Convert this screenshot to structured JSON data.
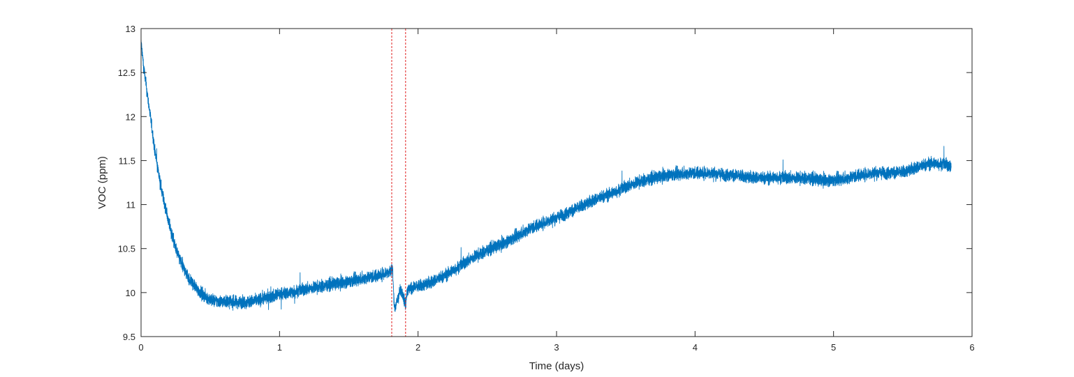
{
  "chart_data": {
    "type": "line",
    "title": "",
    "xlabel": "Time (days)",
    "ylabel": "VOC (ppm)",
    "xlim": [
      0,
      6
    ],
    "ylim": [
      9.5,
      13
    ],
    "xticks": [
      "0",
      "1",
      "2",
      "3",
      "4",
      "5",
      "6"
    ],
    "yticks": [
      "9.5",
      "10",
      "10.5",
      "11",
      "11.5",
      "12",
      "12.5",
      "13"
    ],
    "grid": false,
    "legend": "none",
    "colors": {
      "series": "#0072BD",
      "marker_lines": "#E02020",
      "axes": "#262626"
    },
    "series": [
      {
        "x": [
          0,
          0.02,
          0.05,
          0.08,
          0.1,
          0.15,
          0.2,
          0.25,
          0.3,
          0.35,
          0.4,
          0.45,
          0.5,
          0.55,
          0.6,
          0.7,
          0.8,
          0.9,
          1.0,
          1.1,
          1.2,
          1.3,
          1.4,
          1.5,
          1.6,
          1.7,
          1.8,
          1.815,
          1.83,
          1.85,
          1.87,
          1.89,
          1.91,
          1.92,
          1.95,
          2.0,
          2.1,
          2.2,
          2.3,
          2.4,
          2.5,
          2.6,
          2.7,
          2.8,
          2.9,
          3.0,
          3.1,
          3.2,
          3.3,
          3.4,
          3.5,
          3.6,
          3.7,
          3.8,
          3.9,
          4.0,
          4.1,
          4.2,
          4.3,
          4.4,
          4.5,
          4.6,
          4.7,
          4.8,
          4.9,
          5.0,
          5.1,
          5.2,
          5.3,
          5.4,
          5.5,
          5.6,
          5.7,
          5.8,
          5.85
        ],
        "y": [
          12.85,
          12.55,
          12.2,
          11.85,
          11.6,
          11.15,
          10.8,
          10.5,
          10.3,
          10.15,
          10.05,
          9.97,
          9.92,
          9.9,
          9.9,
          9.89,
          9.9,
          9.94,
          9.98,
          10.01,
          10.04,
          10.07,
          10.1,
          10.13,
          10.16,
          10.19,
          10.24,
          10.28,
          9.82,
          9.9,
          10.02,
          10.0,
          9.85,
          10.02,
          10.05,
          10.07,
          10.12,
          10.2,
          10.3,
          10.4,
          10.48,
          10.55,
          10.63,
          10.72,
          10.79,
          10.85,
          10.92,
          11.0,
          11.07,
          11.13,
          11.2,
          11.26,
          11.3,
          11.34,
          11.35,
          11.36,
          11.36,
          11.34,
          11.33,
          11.31,
          11.3,
          11.31,
          11.3,
          11.3,
          11.28,
          11.28,
          11.3,
          11.34,
          11.36,
          11.36,
          11.37,
          11.42,
          11.47,
          11.46,
          11.43
        ]
      }
    ],
    "vlines": [
      1.81,
      1.91
    ],
    "noise_amplitude": 0.05
  }
}
